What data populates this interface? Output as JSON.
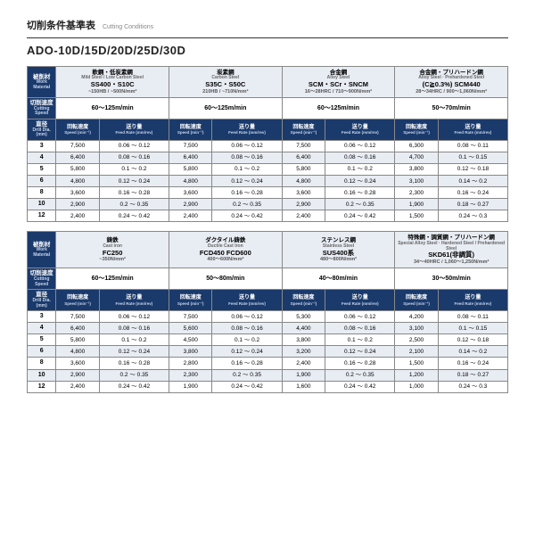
{
  "title_jp": "切削条件基準表",
  "title_en": "Cutting Conditions",
  "product": "ADO-10D/15D/20D/25D/30D",
  "labels": {
    "work_jp": "被削材",
    "work_en": "Work Material",
    "speed_jp": "切削速度",
    "speed_en": "Cutting Speed",
    "dia_jp": "直径",
    "dia_en": "Drill Dia. (mm)",
    "rpm_jp": "回転速度",
    "rpm_en": "Speed (min⁻¹)",
    "feed_jp": "送り量",
    "feed_en": "Feed Rate (mm/rev)"
  },
  "diameters": [
    "3",
    "4",
    "5",
    "6",
    "8",
    "10",
    "12"
  ],
  "colors": {
    "header_bg": "#1a3a6c",
    "header_fg": "#ffffff",
    "band_bg": "#e8ecf3",
    "border": "#888888"
  },
  "tables": [
    {
      "materials": [
        {
          "cat_jp": "軟鋼・低炭素鋼",
          "cat_en": "Mild Steel / Low Carbon Steel",
          "grade": "SS400・S10C",
          "spec": "~150HB / ~500N/mm²",
          "speed": "60～125m/min",
          "rows": [
            [
              "7,500",
              "0.06 ～ 0.12"
            ],
            [
              "6,400",
              "0.08 ～ 0.16"
            ],
            [
              "5,800",
              "0.1 ～ 0.2"
            ],
            [
              "4,800",
              "0.12 ～ 0.24"
            ],
            [
              "3,600",
              "0.16 ～ 0.28"
            ],
            [
              "2,900",
              "0.2 ～ 0.35"
            ],
            [
              "2,400",
              "0.24 ～ 0.42"
            ]
          ]
        },
        {
          "cat_jp": "炭素鋼",
          "cat_en": "Carbon Steel",
          "grade": "S35C・S50C",
          "spec": "210HB / ~710N/mm²",
          "speed": "60～125m/min",
          "rows": [
            [
              "7,500",
              "0.06 ～ 0.12"
            ],
            [
              "6,400",
              "0.08 ～ 0.16"
            ],
            [
              "5,800",
              "0.1 ～ 0.2"
            ],
            [
              "4,800",
              "0.12 ～ 0.24"
            ],
            [
              "3,600",
              "0.16 ～ 0.28"
            ],
            [
              "2,900",
              "0.2 ～ 0.35"
            ],
            [
              "2,400",
              "0.24 ～ 0.42"
            ]
          ]
        },
        {
          "cat_jp": "合金鋼",
          "cat_en": "Alloy Steel",
          "grade": "SCM・SCr・SNCM",
          "spec": "16～28HRC / 710～900N/mm²",
          "speed": "60～125m/min",
          "rows": [
            [
              "7,500",
              "0.06 ～ 0.12"
            ],
            [
              "6,400",
              "0.08 ～ 0.16"
            ],
            [
              "5,800",
              "0.1 ～ 0.2"
            ],
            [
              "4,800",
              "0.12 ～ 0.24"
            ],
            [
              "3,600",
              "0.16 ～ 0.28"
            ],
            [
              "2,900",
              "0.2 ～ 0.35"
            ],
            [
              "2,400",
              "0.24 ～ 0.42"
            ]
          ]
        },
        {
          "cat_jp": "合金鋼・プリハードン鋼",
          "cat_en": "Alloy Steel · Prehardened Steel",
          "grade": "(C≧0.3%) SCM440",
          "spec": "28～34HRC / 900～1,060N/mm²",
          "speed": "50～70m/min",
          "rows": [
            [
              "6,300",
              "0.08 ～ 0.11"
            ],
            [
              "4,700",
              "0.1 ～ 0.15"
            ],
            [
              "3,800",
              "0.12 ～ 0.18"
            ],
            [
              "3,100",
              "0.14 ～ 0.2"
            ],
            [
              "2,300",
              "0.16 ～ 0.24"
            ],
            [
              "1,900",
              "0.18 ～ 0.27"
            ],
            [
              "1,500",
              "0.24 ～ 0.3"
            ]
          ]
        }
      ]
    },
    {
      "materials": [
        {
          "cat_jp": "鋳鉄",
          "cat_en": "Cast Iron",
          "grade": "FC250",
          "spec": "~350N/mm²",
          "speed": "60～125m/min",
          "rows": [
            [
              "7,500",
              "0.06 ～ 0.12"
            ],
            [
              "6,400",
              "0.08 ～ 0.16"
            ],
            [
              "5,800",
              "0.1 ～ 0.2"
            ],
            [
              "4,800",
              "0.12 ～ 0.24"
            ],
            [
              "3,600",
              "0.16 ～ 0.28"
            ],
            [
              "2,900",
              "0.2 ～ 0.35"
            ],
            [
              "2,400",
              "0.24 ～ 0.42"
            ]
          ]
        },
        {
          "cat_jp": "ダクタイル鋳鉄",
          "cat_en": "Ductile Cast Iron",
          "grade": "FCD450 FCD600",
          "spec": "400～600N/mm²",
          "speed": "50～80m/min",
          "rows": [
            [
              "7,500",
              "0.06 ～ 0.12"
            ],
            [
              "5,600",
              "0.08 ～ 0.16"
            ],
            [
              "4,500",
              "0.1 ～ 0.2"
            ],
            [
              "3,800",
              "0.12 ～ 0.24"
            ],
            [
              "2,800",
              "0.16 ～ 0.28"
            ],
            [
              "2,300",
              "0.2 ～ 0.35"
            ],
            [
              "1,900",
              "0.24 ～ 0.42"
            ]
          ]
        },
        {
          "cat_jp": "ステンレス鋼",
          "cat_en": "Stainless Steel",
          "grade": "SUS400系",
          "spec": "480～800N/mm²",
          "speed": "40～80m/min",
          "rows": [
            [
              "5,300",
              "0.06 ～ 0.12"
            ],
            [
              "4,400",
              "0.08 ～ 0.16"
            ],
            [
              "3,800",
              "0.1 ～ 0.2"
            ],
            [
              "3,200",
              "0.12 ～ 0.24"
            ],
            [
              "2,400",
              "0.16 ～ 0.28"
            ],
            [
              "1,900",
              "0.2 ～ 0.35"
            ],
            [
              "1,600",
              "0.24 ～ 0.42"
            ]
          ]
        },
        {
          "cat_jp": "特殊鋼・調質鋼・プリハードン鋼",
          "cat_en": "Special Alloy Steel · Hardened Steel / Prehardened Steel",
          "grade": "SKD61(非調質)",
          "spec": "34～40HRC / 1,060～1,250N/mm²",
          "speed": "30～50m/min",
          "rows": [
            [
              "4,200",
              "0.08 ～ 0.11"
            ],
            [
              "3,100",
              "0.1 ～ 0.15"
            ],
            [
              "2,500",
              "0.12 ～ 0.18"
            ],
            [
              "2,100",
              "0.14 ～ 0.2"
            ],
            [
              "1,500",
              "0.16 ～ 0.24"
            ],
            [
              "1,200",
              "0.18 ～ 0.27"
            ],
            [
              "1,000",
              "0.24 ～ 0.3"
            ]
          ]
        }
      ]
    }
  ]
}
